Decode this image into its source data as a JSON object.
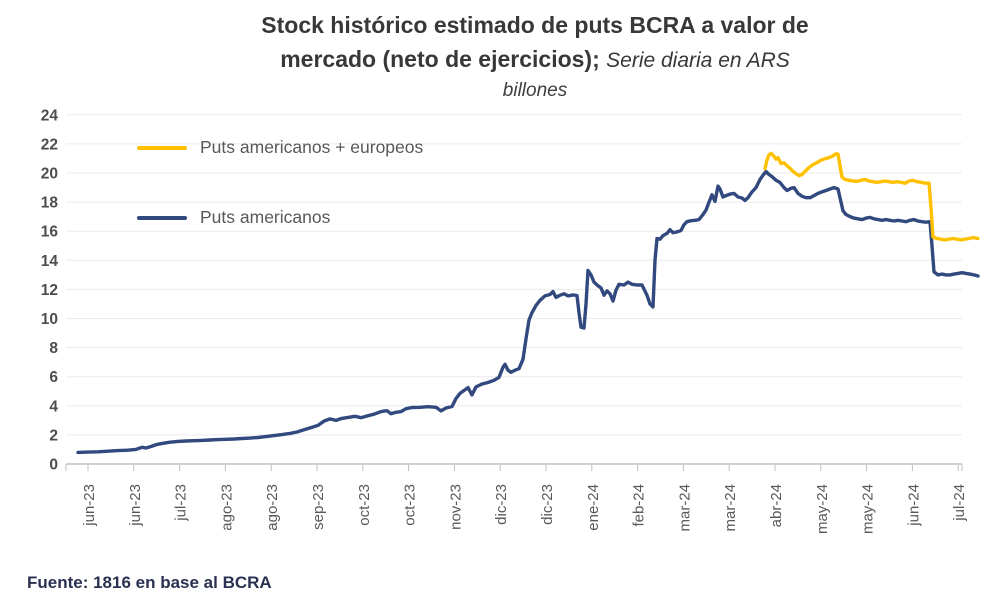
{
  "title": {
    "line1": "Stock histórico estimado de puts BCRA a valor de",
    "line2_bold": "mercado (neto de ejercicios); ",
    "line2_italic": "Serie diaria en ARS",
    "line3_italic": "billones"
  },
  "legend": {
    "items": [
      {
        "label": "Puts americanos + europeos",
        "color": "#FFC000"
      },
      {
        "label": "Puts americanos",
        "color": "#31497E"
      }
    ]
  },
  "footer": {
    "source": "Fuente: 1816 en base al BCRA"
  },
  "colors": {
    "series_yellow": "#FFC000",
    "series_navy": "#31497E",
    "grid": "#ebebeb",
    "axis": "#c0c0c0",
    "tick_text": "#595959",
    "title_text": "#383838",
    "background": "#ffffff"
  },
  "chart_data": {
    "type": "line",
    "title": "Stock histórico estimado de puts BCRA a valor de mercado (neto de ejercicios); Serie diaria en ARS billones",
    "ylabel": "ARS billones",
    "xlabel": "",
    "ylim": [
      0,
      24
    ],
    "y_ticks": [
      0,
      2,
      4,
      6,
      8,
      10,
      12,
      14,
      16,
      18,
      20,
      22,
      24
    ],
    "grid": "horizontal",
    "legend_position": "top-left inside plot",
    "x_axis": {
      "unit": "daily series, jun-23 through jul-24",
      "tick_labels": [
        "jun-23",
        "jun-23",
        "jul-23",
        "ago-23",
        "ago-23",
        "sep-23",
        "oct-23",
        "oct-23",
        "nov-23",
        "dic-23",
        "dic-23",
        "ene-24",
        "feb-24",
        "mar-24",
        "mar-24",
        "abr-24",
        "may-24",
        "may-24",
        "jun-24",
        "jul-24"
      ]
    },
    "point_format": "[x_px_in_screenshot (plot spans 66..962 px, ticks listed above at 88..958), value in ARS billones]",
    "series": [
      {
        "name": "Puts americanos",
        "color": "#31497E",
        "points": [
          [
            78,
            0.8
          ],
          [
            88,
            0.82
          ],
          [
            98,
            0.84
          ],
          [
            108,
            0.88
          ],
          [
            118,
            0.92
          ],
          [
            128,
            0.95
          ],
          [
            136,
            1.0
          ],
          [
            142,
            1.15
          ],
          [
            146,
            1.1
          ],
          [
            151,
            1.2
          ],
          [
            157,
            1.35
          ],
          [
            163,
            1.42
          ],
          [
            170,
            1.5
          ],
          [
            178,
            1.55
          ],
          [
            186,
            1.58
          ],
          [
            194,
            1.6
          ],
          [
            202,
            1.62
          ],
          [
            210,
            1.65
          ],
          [
            218,
            1.68
          ],
          [
            226,
            1.7
          ],
          [
            234,
            1.72
          ],
          [
            242,
            1.75
          ],
          [
            250,
            1.78
          ],
          [
            258,
            1.82
          ],
          [
            266,
            1.88
          ],
          [
            274,
            1.95
          ],
          [
            282,
            2.02
          ],
          [
            290,
            2.1
          ],
          [
            297,
            2.2
          ],
          [
            304,
            2.35
          ],
          [
            311,
            2.5
          ],
          [
            318,
            2.65
          ],
          [
            324,
            2.95
          ],
          [
            330,
            3.1
          ],
          [
            336,
            3.0
          ],
          [
            341,
            3.12
          ],
          [
            348,
            3.2
          ],
          [
            355,
            3.28
          ],
          [
            361,
            3.18
          ],
          [
            367,
            3.3
          ],
          [
            374,
            3.42
          ],
          [
            381,
            3.6
          ],
          [
            387,
            3.66
          ],
          [
            391,
            3.45
          ],
          [
            396,
            3.55
          ],
          [
            401,
            3.6
          ],
          [
            406,
            3.8
          ],
          [
            412,
            3.88
          ],
          [
            420,
            3.9
          ],
          [
            428,
            3.94
          ],
          [
            436,
            3.9
          ],
          [
            441,
            3.65
          ],
          [
            446,
            3.85
          ],
          [
            452,
            3.95
          ],
          [
            456,
            4.5
          ],
          [
            460,
            4.85
          ],
          [
            464,
            5.05
          ],
          [
            468,
            5.25
          ],
          [
            472,
            4.75
          ],
          [
            476,
            5.3
          ],
          [
            482,
            5.5
          ],
          [
            488,
            5.6
          ],
          [
            494,
            5.75
          ],
          [
            499,
            5.95
          ],
          [
            503,
            6.65
          ],
          [
            505,
            6.85
          ],
          [
            508,
            6.45
          ],
          [
            511,
            6.3
          ],
          [
            515,
            6.45
          ],
          [
            519,
            6.55
          ],
          [
            523,
            7.2
          ],
          [
            526,
            8.6
          ],
          [
            529,
            9.9
          ],
          [
            532,
            10.4
          ],
          [
            536,
            10.9
          ],
          [
            540,
            11.25
          ],
          [
            545,
            11.55
          ],
          [
            550,
            11.65
          ],
          [
            553,
            11.85
          ],
          [
            556,
            11.45
          ],
          [
            560,
            11.6
          ],
          [
            564,
            11.7
          ],
          [
            568,
            11.55
          ],
          [
            573,
            11.62
          ],
          [
            577,
            11.58
          ],
          [
            579,
            10.4
          ],
          [
            581,
            9.4
          ],
          [
            584,
            9.35
          ],
          [
            586,
            11.0
          ],
          [
            588,
            13.3
          ],
          [
            591,
            13.0
          ],
          [
            594,
            12.5
          ],
          [
            598,
            12.25
          ],
          [
            601,
            12.1
          ],
          [
            604,
            11.6
          ],
          [
            607,
            11.9
          ],
          [
            610,
            11.7
          ],
          [
            613,
            11.2
          ],
          [
            616,
            11.95
          ],
          [
            619,
            12.35
          ],
          [
            624,
            12.3
          ],
          [
            628,
            12.5
          ],
          [
            632,
            12.35
          ],
          [
            637,
            12.3
          ],
          [
            642,
            12.3
          ],
          [
            647,
            11.6
          ],
          [
            650,
            11.0
          ],
          [
            653,
            10.8
          ],
          [
            655,
            14.0
          ],
          [
            657,
            15.5
          ],
          [
            660,
            15.45
          ],
          [
            663,
            15.7
          ],
          [
            667,
            15.85
          ],
          [
            670,
            16.1
          ],
          [
            673,
            15.9
          ],
          [
            677,
            15.95
          ],
          [
            681,
            16.05
          ],
          [
            684,
            16.45
          ],
          [
            687,
            16.65
          ],
          [
            691,
            16.72
          ],
          [
            695,
            16.75
          ],
          [
            699,
            16.8
          ],
          [
            703,
            17.15
          ],
          [
            706,
            17.45
          ],
          [
            709,
            18.0
          ],
          [
            712,
            18.5
          ],
          [
            715,
            18.05
          ],
          [
            718,
            19.1
          ],
          [
            720,
            18.9
          ],
          [
            723,
            18.35
          ],
          [
            726,
            18.45
          ],
          [
            730,
            18.55
          ],
          [
            734,
            18.6
          ],
          [
            738,
            18.35
          ],
          [
            742,
            18.28
          ],
          [
            745,
            18.12
          ],
          [
            748,
            18.3
          ],
          [
            752,
            18.7
          ],
          [
            756,
            19.0
          ],
          [
            760,
            19.55
          ],
          [
            763,
            19.85
          ],
          [
            766,
            20.1
          ],
          [
            769,
            19.9
          ],
          [
            772,
            19.75
          ],
          [
            776,
            19.5
          ],
          [
            780,
            19.35
          ],
          [
            784,
            19.0
          ],
          [
            787,
            18.8
          ],
          [
            791,
            18.95
          ],
          [
            794,
            19.0
          ],
          [
            798,
            18.6
          ],
          [
            802,
            18.4
          ],
          [
            806,
            18.3
          ],
          [
            810,
            18.3
          ],
          [
            814,
            18.45
          ],
          [
            818,
            18.6
          ],
          [
            822,
            18.7
          ],
          [
            826,
            18.8
          ],
          [
            830,
            18.9
          ],
          [
            834,
            19.0
          ],
          [
            838,
            18.9
          ],
          [
            841,
            18.0
          ],
          [
            843,
            17.4
          ],
          [
            846,
            17.15
          ],
          [
            850,
            17.0
          ],
          [
            854,
            16.9
          ],
          [
            858,
            16.85
          ],
          [
            862,
            16.8
          ],
          [
            866,
            16.9
          ],
          [
            870,
            16.95
          ],
          [
            874,
            16.85
          ],
          [
            878,
            16.8
          ],
          [
            882,
            16.75
          ],
          [
            886,
            16.8
          ],
          [
            890,
            16.75
          ],
          [
            894,
            16.7
          ],
          [
            898,
            16.75
          ],
          [
            902,
            16.7
          ],
          [
            906,
            16.65
          ],
          [
            910,
            16.75
          ],
          [
            914,
            16.8
          ],
          [
            918,
            16.7
          ],
          [
            922,
            16.65
          ],
          [
            926,
            16.62
          ],
          [
            930,
            16.65
          ],
          [
            932,
            15.0
          ],
          [
            934,
            13.2
          ],
          [
            938,
            13.0
          ],
          [
            942,
            13.05
          ],
          [
            946,
            13.0
          ],
          [
            950,
            13.0
          ],
          [
            954,
            13.05
          ],
          [
            958,
            13.1
          ],
          [
            962,
            13.15
          ],
          [
            966,
            13.1
          ],
          [
            970,
            13.05
          ],
          [
            974,
            13.0
          ],
          [
            978,
            12.92
          ]
        ]
      },
      {
        "name": "Puts americanos + europeos",
        "color": "#FFC000",
        "points": [
          [
            765,
            20.3
          ],
          [
            767,
            20.9
          ],
          [
            769,
            21.25
          ],
          [
            771,
            21.35
          ],
          [
            774,
            21.15
          ],
          [
            776,
            20.95
          ],
          [
            778,
            21.05
          ],
          [
            781,
            20.65
          ],
          [
            784,
            20.7
          ],
          [
            787,
            20.5
          ],
          [
            790,
            20.32
          ],
          [
            793,
            20.12
          ],
          [
            796,
            19.95
          ],
          [
            799,
            19.82
          ],
          [
            802,
            19.9
          ],
          [
            805,
            20.1
          ],
          [
            809,
            20.38
          ],
          [
            813,
            20.58
          ],
          [
            817,
            20.72
          ],
          [
            821,
            20.88
          ],
          [
            825,
            20.98
          ],
          [
            829,
            21.05
          ],
          [
            833,
            21.18
          ],
          [
            836,
            21.32
          ],
          [
            838,
            21.3
          ],
          [
            840,
            20.5
          ],
          [
            842,
            19.72
          ],
          [
            845,
            19.55
          ],
          [
            849,
            19.5
          ],
          [
            853,
            19.45
          ],
          [
            857,
            19.42
          ],
          [
            861,
            19.5
          ],
          [
            865,
            19.55
          ],
          [
            869,
            19.45
          ],
          [
            873,
            19.4
          ],
          [
            877,
            19.36
          ],
          [
            881,
            19.4
          ],
          [
            885,
            19.45
          ],
          [
            889,
            19.4
          ],
          [
            893,
            19.36
          ],
          [
            897,
            19.4
          ],
          [
            901,
            19.36
          ],
          [
            905,
            19.3
          ],
          [
            909,
            19.45
          ],
          [
            913,
            19.5
          ],
          [
            917,
            19.4
          ],
          [
            921,
            19.36
          ],
          [
            925,
            19.3
          ],
          [
            929,
            19.3
          ],
          [
            931,
            17.6
          ],
          [
            933,
            15.6
          ],
          [
            937,
            15.5
          ],
          [
            941,
            15.45
          ],
          [
            945,
            15.4
          ],
          [
            949,
            15.45
          ],
          [
            953,
            15.5
          ],
          [
            957,
            15.45
          ],
          [
            961,
            15.4
          ],
          [
            965,
            15.45
          ],
          [
            969,
            15.5
          ],
          [
            973,
            15.56
          ],
          [
            978,
            15.5
          ]
        ]
      }
    ]
  }
}
